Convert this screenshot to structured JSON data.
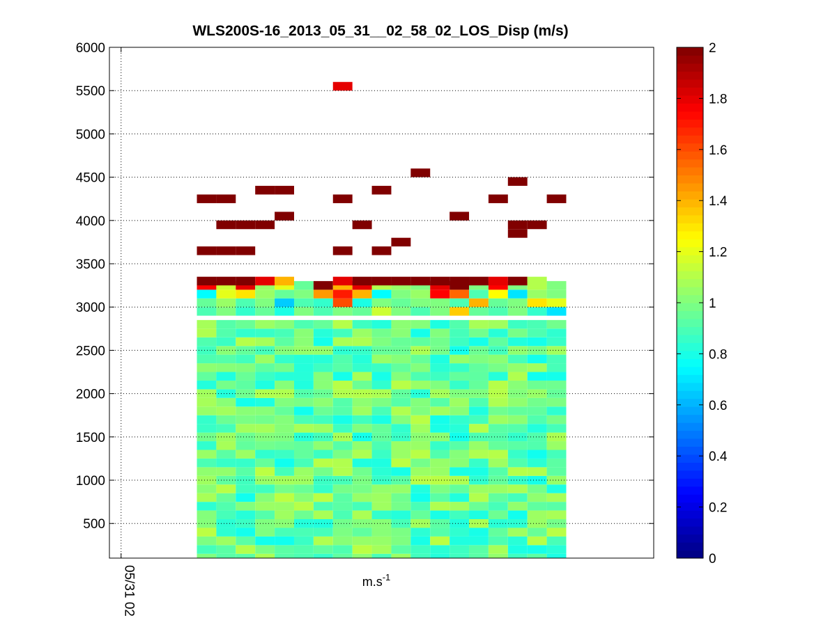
{
  "figure": {
    "background": "#ffffff"
  },
  "chart_data": {
    "type": "heatmap",
    "title": "WLS200S-16_2013_05_31__02_58_02_LOS_Disp (m/s)",
    "xlabel_base": "m.s",
    "xlabel_exponent": "-1",
    "ylabel": "",
    "xlim": [
      -0.3,
      13.7
    ],
    "ylim": [
      100,
      6000
    ],
    "xticks": [
      {
        "value": 0,
        "label": "05/31 02"
      }
    ],
    "yticks": [
      500,
      1000,
      1500,
      2000,
      2500,
      3000,
      3500,
      4000,
      4500,
      5000,
      5500,
      6000
    ],
    "grid": true,
    "colormap": "jet",
    "clim": [
      0,
      2
    ],
    "colorbar_ticks": [
      0,
      0.2,
      0.4,
      0.6,
      0.8,
      1,
      1.2,
      1.4,
      1.6,
      1.8,
      2
    ],
    "profiles_x": [
      2.2,
      2.7,
      3.2,
      3.7,
      4.2,
      4.7,
      5.2,
      5.7,
      6.2,
      6.7,
      7.2,
      7.7,
      8.2,
      8.7,
      9.2,
      9.7,
      10.2,
      10.7,
      11.2
    ],
    "gate_spacing": 100,
    "base_field": {
      "description": "",
      "alt_min": 100,
      "alt_max": 2900,
      "value_range": [
        0.78,
        1.12
      ],
      "typical": 0.95
    },
    "cells": [
      {
        "x": 2.2,
        "alt": 2950,
        "v": 0.9
      },
      {
        "x": 2.7,
        "alt": 2950,
        "v": 1.0
      },
      {
        "x": 3.2,
        "alt": 2950,
        "v": 0.85
      },
      {
        "x": 3.7,
        "alt": 2950,
        "v": 0.95
      },
      {
        "x": 4.2,
        "alt": 2950,
        "v": 0.8
      },
      {
        "x": 4.7,
        "alt": 2950,
        "v": 1.0
      },
      {
        "x": 5.2,
        "alt": 2950,
        "v": 0.9
      },
      {
        "x": 5.7,
        "alt": 2950,
        "v": 1.0
      },
      {
        "x": 6.2,
        "alt": 2950,
        "v": 0.95
      },
      {
        "x": 6.7,
        "alt": 2950,
        "v": 1.15
      },
      {
        "x": 7.2,
        "alt": 2950,
        "v": 1.0
      },
      {
        "x": 7.7,
        "alt": 2950,
        "v": 0.9
      },
      {
        "x": 8.2,
        "alt": 2950,
        "v": 1.0
      },
      {
        "x": 8.7,
        "alt": 2950,
        "v": 1.35
      },
      {
        "x": 9.2,
        "alt": 2950,
        "v": 0.95
      },
      {
        "x": 9.7,
        "alt": 2950,
        "v": 0.9
      },
      {
        "x": 10.2,
        "alt": 2950,
        "v": 1.0
      },
      {
        "x": 10.7,
        "alt": 2950,
        "v": 0.85
      },
      {
        "x": 11.2,
        "alt": 2950,
        "v": 0.7
      },
      {
        "x": 2.2,
        "alt": 3050,
        "v": 0.95
      },
      {
        "x": 2.7,
        "alt": 3050,
        "v": 1.05
      },
      {
        "x": 3.2,
        "alt": 3050,
        "v": 0.9
      },
      {
        "x": 3.7,
        "alt": 3050,
        "v": 1.0
      },
      {
        "x": 4.2,
        "alt": 3050,
        "v": 0.65
      },
      {
        "x": 4.7,
        "alt": 3050,
        "v": 0.9
      },
      {
        "x": 5.2,
        "alt": 3050,
        "v": 0.85
      },
      {
        "x": 5.7,
        "alt": 3050,
        "v": 1.6
      },
      {
        "x": 6.2,
        "alt": 3050,
        "v": 0.8
      },
      {
        "x": 6.7,
        "alt": 3050,
        "v": 1.0
      },
      {
        "x": 7.2,
        "alt": 3050,
        "v": 0.95
      },
      {
        "x": 7.7,
        "alt": 3050,
        "v": 1.0
      },
      {
        "x": 8.2,
        "alt": 3050,
        "v": 1.0
      },
      {
        "x": 8.7,
        "alt": 3050,
        "v": 0.9
      },
      {
        "x": 9.2,
        "alt": 3050,
        "v": 1.4
      },
      {
        "x": 9.7,
        "alt": 3050,
        "v": 0.95
      },
      {
        "x": 10.2,
        "alt": 3050,
        "v": 1.0
      },
      {
        "x": 10.7,
        "alt": 3050,
        "v": 1.3
      },
      {
        "x": 11.2,
        "alt": 3050,
        "v": 1.2
      },
      {
        "x": 2.2,
        "alt": 3150,
        "v": 0.75
      },
      {
        "x": 2.7,
        "alt": 3150,
        "v": 1.2
      },
      {
        "x": 3.2,
        "alt": 3150,
        "v": 1.3
      },
      {
        "x": 3.7,
        "alt": 3150,
        "v": 1.05
      },
      {
        "x": 4.2,
        "alt": 3150,
        "v": 0.95
      },
      {
        "x": 4.7,
        "alt": 3150,
        "v": 1.0
      },
      {
        "x": 5.2,
        "alt": 3150,
        "v": 1.45
      },
      {
        "x": 5.7,
        "alt": 3150,
        "v": 1.7
      },
      {
        "x": 6.2,
        "alt": 3150,
        "v": 1.4
      },
      {
        "x": 6.7,
        "alt": 3150,
        "v": 0.75
      },
      {
        "x": 7.2,
        "alt": 3150,
        "v": 1.0
      },
      {
        "x": 7.7,
        "alt": 3150,
        "v": 1.05
      },
      {
        "x": 8.2,
        "alt": 3150,
        "v": 1.75
      },
      {
        "x": 8.7,
        "alt": 3150,
        "v": 1.55
      },
      {
        "x": 9.2,
        "alt": 3150,
        "v": 0.9
      },
      {
        "x": 9.7,
        "alt": 3150,
        "v": 1.25
      },
      {
        "x": 10.2,
        "alt": 3150,
        "v": 0.7
      },
      {
        "x": 10.7,
        "alt": 3150,
        "v": 1.05
      },
      {
        "x": 11.2,
        "alt": 3150,
        "v": 1.0
      },
      {
        "x": 2.2,
        "alt": 3250,
        "v": 1.75
      },
      {
        "x": 2.7,
        "alt": 3250,
        "v": 1.15
      },
      {
        "x": 3.2,
        "alt": 3250,
        "v": 1.8
      },
      {
        "x": 3.7,
        "alt": 3250,
        "v": 1.05
      },
      {
        "x": 4.2,
        "alt": 3250,
        "v": 1.2
      },
      {
        "x": 4.7,
        "alt": 3250,
        "v": 0.95
      },
      {
        "x": 5.2,
        "alt": 3250,
        "v": 2.0
      },
      {
        "x": 5.7,
        "alt": 3250,
        "v": 1.4
      },
      {
        "x": 6.2,
        "alt": 3250,
        "v": 1.8
      },
      {
        "x": 6.7,
        "alt": 3250,
        "v": 1.1
      },
      {
        "x": 7.2,
        "alt": 3250,
        "v": 1.05
      },
      {
        "x": 7.7,
        "alt": 3250,
        "v": 1.0
      },
      {
        "x": 8.2,
        "alt": 3250,
        "v": 1.8
      },
      {
        "x": 8.7,
        "alt": 3250,
        "v": 2.0
      },
      {
        "x": 9.2,
        "alt": 3250,
        "v": 1.0
      },
      {
        "x": 9.7,
        "alt": 3250,
        "v": 1.75
      },
      {
        "x": 10.2,
        "alt": 3250,
        "v": 1.0
      },
      {
        "x": 10.7,
        "alt": 3250,
        "v": 1.1
      },
      {
        "x": 11.2,
        "alt": 3250,
        "v": 1.0
      },
      {
        "x": 2.2,
        "alt": 3300,
        "v": 2.0
      },
      {
        "x": 2.7,
        "alt": 3300,
        "v": 2.0
      },
      {
        "x": 3.2,
        "alt": 3300,
        "v": 2.0
      },
      {
        "x": 3.7,
        "alt": 3300,
        "v": 1.8
      },
      {
        "x": 4.2,
        "alt": 3300,
        "v": 1.4
      },
      {
        "x": 5.7,
        "alt": 3300,
        "v": 1.8
      },
      {
        "x": 6.2,
        "alt": 3300,
        "v": 2.0
      },
      {
        "x": 6.7,
        "alt": 3300,
        "v": 2.0
      },
      {
        "x": 7.2,
        "alt": 3300,
        "v": 2.0
      },
      {
        "x": 7.7,
        "alt": 3300,
        "v": 2.0
      },
      {
        "x": 8.2,
        "alt": 3300,
        "v": 2.0
      },
      {
        "x": 8.7,
        "alt": 3300,
        "v": 2.0
      },
      {
        "x": 9.2,
        "alt": 3300,
        "v": 2.0
      },
      {
        "x": 9.7,
        "alt": 3300,
        "v": 1.8
      },
      {
        "x": 10.2,
        "alt": 3300,
        "v": 2.0
      },
      {
        "x": 10.7,
        "alt": 3300,
        "v": 1.1
      },
      {
        "x": 2.2,
        "alt": 3650,
        "v": 2.0
      },
      {
        "x": 2.7,
        "alt": 3650,
        "v": 2.0
      },
      {
        "x": 3.2,
        "alt": 3650,
        "v": 2.0
      },
      {
        "x": 5.7,
        "alt": 3650,
        "v": 2.0
      },
      {
        "x": 6.7,
        "alt": 3650,
        "v": 2.0
      },
      {
        "x": 7.2,
        "alt": 3750,
        "v": 2.0
      },
      {
        "x": 10.2,
        "alt": 3850,
        "v": 2.0
      },
      {
        "x": 2.7,
        "alt": 3950,
        "v": 2.0
      },
      {
        "x": 3.2,
        "alt": 3950,
        "v": 2.0
      },
      {
        "x": 3.7,
        "alt": 3950,
        "v": 2.0
      },
      {
        "x": 6.2,
        "alt": 3950,
        "v": 2.0
      },
      {
        "x": 10.2,
        "alt": 3950,
        "v": 2.0
      },
      {
        "x": 10.7,
        "alt": 3950,
        "v": 2.0
      },
      {
        "x": 4.2,
        "alt": 4050,
        "v": 2.0
      },
      {
        "x": 8.7,
        "alt": 4050,
        "v": 2.0
      },
      {
        "x": 2.2,
        "alt": 4250,
        "v": 2.0
      },
      {
        "x": 2.7,
        "alt": 4250,
        "v": 2.0
      },
      {
        "x": 5.7,
        "alt": 4250,
        "v": 2.0
      },
      {
        "x": 9.7,
        "alt": 4250,
        "v": 2.0
      },
      {
        "x": 11.2,
        "alt": 4250,
        "v": 2.0
      },
      {
        "x": 3.7,
        "alt": 4350,
        "v": 2.0
      },
      {
        "x": 4.2,
        "alt": 4350,
        "v": 2.0
      },
      {
        "x": 6.7,
        "alt": 4350,
        "v": 2.0
      },
      {
        "x": 10.2,
        "alt": 4450,
        "v": 2.0
      },
      {
        "x": 7.7,
        "alt": 4550,
        "v": 2.0
      },
      {
        "x": 5.7,
        "alt": 5550,
        "v": 1.8
      }
    ]
  }
}
